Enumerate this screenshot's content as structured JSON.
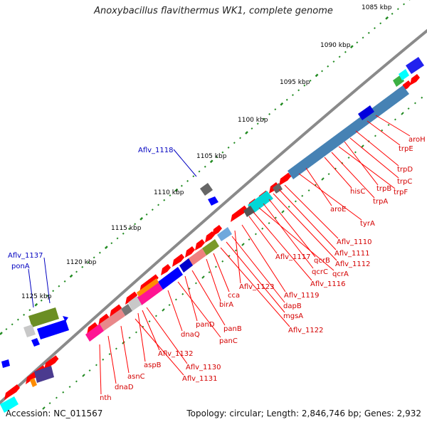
{
  "title": "Anoxybacillus flavithermus WK1, complete genome",
  "accession_label": "Accession: NC_011567",
  "topology_label": "Topology: circular; Length: 2,846,746 bp; Genes: 2,932",
  "kbp_ticks": [
    "1085 kbp",
    "1090 kbp",
    "1095 kbp",
    "1100 kbp",
    "1105 kbp",
    "1110 kbp",
    "1115 kbp",
    "1120 kbp",
    "1125 kbp"
  ],
  "red_labels": [
    "aroH",
    "trpE",
    "trpD",
    "trpC",
    "trpB",
    "trpF",
    "hisC",
    "trpA",
    "aroE",
    "tyrA",
    "Aflv_1110",
    "Aflv_1111",
    "Aflv_1112",
    "qcrB",
    "qcrC",
    "qcrA",
    "Aflv_1116",
    "Aflv_1117",
    "Aflv_1119",
    "Aflv_1123",
    "dapB",
    "mgsA",
    "Aflv_1122",
    "cca",
    "birA",
    "panB",
    "panD",
    "panC",
    "dnaQ",
    "aspB",
    "Aflv_1132",
    "Aflv_1130",
    "Aflv_1131",
    "asnC",
    "dnaD",
    "nth"
  ],
  "blue_labels": [
    "Aflv_1118",
    "Aflv_1137",
    "ponA"
  ],
  "colors": {
    "forward": "#ff0000",
    "reverse_blue": "#0000ff",
    "steel": "#4682b4",
    "cyan": "#00ffff",
    "olive": "#6b8e23",
    "magenta": "#ff1493",
    "orange": "#ff8c00",
    "backbone": "#808080",
    "tick": "#228b22"
  }
}
